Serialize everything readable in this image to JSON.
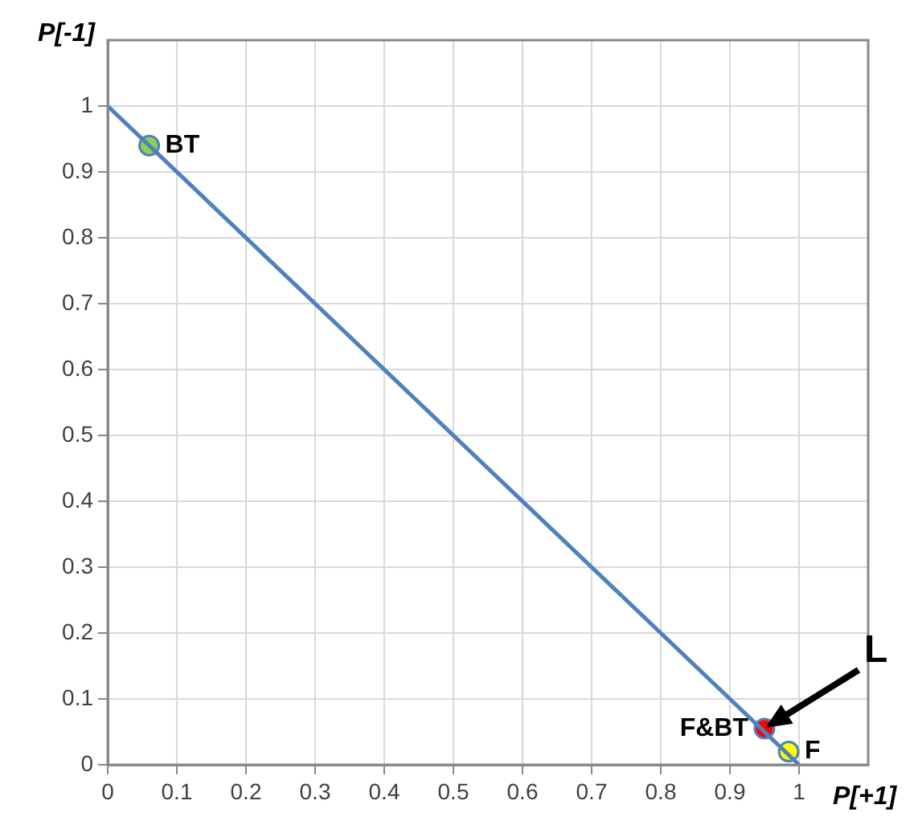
{
  "chart_data": {
    "type": "scatter",
    "xlabel": "P[+1]",
    "ylabel": "P[-1]",
    "xlim": [
      0,
      1.1
    ],
    "ylim": [
      0,
      1.1
    ],
    "xticks": [
      0,
      0.1,
      0.2,
      0.3,
      0.4,
      0.5,
      0.6,
      0.7,
      0.8,
      0.9,
      1
    ],
    "yticks": [
      0,
      0.1,
      0.2,
      0.3,
      0.4,
      0.5,
      0.6,
      0.7,
      0.8,
      0.9,
      1
    ],
    "grid": true,
    "legend": false,
    "marker": "circle",
    "series": [
      {
        "type": "line",
        "color": "#4f81bd",
        "x": [
          0,
          1
        ],
        "values": [
          1,
          0
        ],
        "marker": "none"
      },
      {
        "name": "BT",
        "color": "#92d050",
        "x": [
          0.06
        ],
        "values": [
          0.94
        ]
      },
      {
        "name": "F&BT",
        "color": "#ff0000",
        "x": [
          0.95
        ],
        "values": [
          0.055
        ]
      },
      {
        "name": "F",
        "color": "#ffff00",
        "x": [
          0.985
        ],
        "values": [
          0.02
        ]
      }
    ],
    "annotations": [
      {
        "text": "L",
        "x": 0.95,
        "y": 0.055
      }
    ]
  }
}
